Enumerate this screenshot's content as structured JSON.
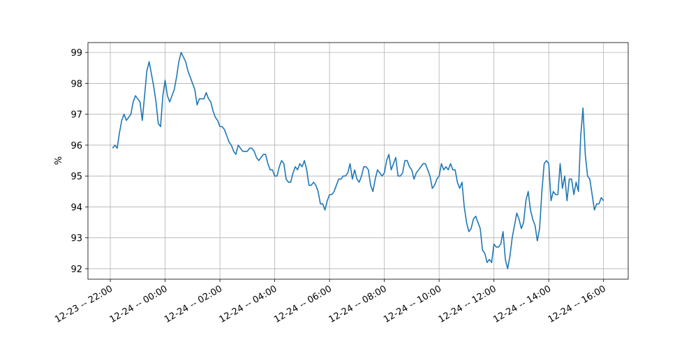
{
  "chart_data": {
    "type": "line",
    "y_label": "%",
    "grid": true,
    "xlim": [
      "12-23 -- 21:11",
      "12-24 -- 16:54"
    ],
    "xticks": [
      "12-23 -- 22:00",
      "12-24 -- 00:00",
      "12-24 -- 02:00",
      "12-24 -- 04:00",
      "12-24 -- 06:00",
      "12-24 -- 08:00",
      "12-24 -- 10:00",
      "12-24 -- 12:00",
      "12-24 -- 14:00",
      "12-24 -- 16:00"
    ],
    "ylim": [
      91.66,
      99.32
    ],
    "yticks": [
      92,
      93,
      94,
      95,
      96,
      97,
      98,
      99
    ],
    "x": [
      "12-23 -- 22:05",
      "12-23 -- 22:10",
      "12-23 -- 22:15",
      "12-23 -- 22:20",
      "12-23 -- 22:25",
      "12-23 -- 22:30",
      "12-23 -- 22:35",
      "12-23 -- 22:40",
      "12-23 -- 22:45",
      "12-23 -- 22:50",
      "12-23 -- 22:55",
      "12-23 -- 23:00",
      "12-23 -- 23:05",
      "12-23 -- 23:10",
      "12-23 -- 23:15",
      "12-23 -- 23:20",
      "12-23 -- 23:25",
      "12-23 -- 23:30",
      "12-23 -- 23:35",
      "12-23 -- 23:40",
      "12-23 -- 23:45",
      "12-23 -- 23:50",
      "12-23 -- 23:55",
      "12-24 -- 00:00",
      "12-24 -- 00:05",
      "12-24 -- 00:10",
      "12-24 -- 00:15",
      "12-24 -- 00:20",
      "12-24 -- 00:25",
      "12-24 -- 00:30",
      "12-24 -- 00:35",
      "12-24 -- 00:40",
      "12-24 -- 00:45",
      "12-24 -- 00:50",
      "12-24 -- 00:55",
      "12-24 -- 01:00",
      "12-24 -- 01:05",
      "12-24 -- 01:10",
      "12-24 -- 01:15",
      "12-24 -- 01:20",
      "12-24 -- 01:25",
      "12-24 -- 01:30",
      "12-24 -- 01:35",
      "12-24 -- 01:40",
      "12-24 -- 01:45",
      "12-24 -- 01:50",
      "12-24 -- 01:55",
      "12-24 -- 02:00",
      "12-24 -- 02:05",
      "12-24 -- 02:10",
      "12-24 -- 02:15",
      "12-24 -- 02:20",
      "12-24 -- 02:25",
      "12-24 -- 02:30",
      "12-24 -- 02:35",
      "12-24 -- 02:40",
      "12-24 -- 02:45",
      "12-24 -- 02:50",
      "12-24 -- 02:55",
      "12-24 -- 03:00",
      "12-24 -- 03:05",
      "12-24 -- 03:10",
      "12-24 -- 03:15",
      "12-24 -- 03:20",
      "12-24 -- 03:25",
      "12-24 -- 03:30",
      "12-24 -- 03:35",
      "12-24 -- 03:40",
      "12-24 -- 03:45",
      "12-24 -- 03:50",
      "12-24 -- 03:55",
      "12-24 -- 04:00",
      "12-24 -- 04:05",
      "12-24 -- 04:10",
      "12-24 -- 04:15",
      "12-24 -- 04:20",
      "12-24 -- 04:25",
      "12-24 -- 04:30",
      "12-24 -- 04:35",
      "12-24 -- 04:40",
      "12-24 -- 04:45",
      "12-24 -- 04:50",
      "12-24 -- 04:55",
      "12-24 -- 05:00",
      "12-24 -- 05:05",
      "12-24 -- 05:10",
      "12-24 -- 05:15",
      "12-24 -- 05:20",
      "12-24 -- 05:25",
      "12-24 -- 05:30",
      "12-24 -- 05:35",
      "12-24 -- 05:40",
      "12-24 -- 05:45",
      "12-24 -- 05:50",
      "12-24 -- 05:55",
      "12-24 -- 06:00",
      "12-24 -- 06:05",
      "12-24 -- 06:10",
      "12-24 -- 06:15",
      "12-24 -- 06:20",
      "12-24 -- 06:25",
      "12-24 -- 06:30",
      "12-24 -- 06:35",
      "12-24 -- 06:40",
      "12-24 -- 06:45",
      "12-24 -- 06:50",
      "12-24 -- 06:55",
      "12-24 -- 07:00",
      "12-24 -- 07:05",
      "12-24 -- 07:10",
      "12-24 -- 07:15",
      "12-24 -- 07:20",
      "12-24 -- 07:25",
      "12-24 -- 07:30",
      "12-24 -- 07:35",
      "12-24 -- 07:40",
      "12-24 -- 07:45",
      "12-24 -- 07:50",
      "12-24 -- 07:55",
      "12-24 -- 08:00",
      "12-24 -- 08:05",
      "12-24 -- 08:10",
      "12-24 -- 08:15",
      "12-24 -- 08:20",
      "12-24 -- 08:25",
      "12-24 -- 08:30",
      "12-24 -- 08:35",
      "12-24 -- 08:40",
      "12-24 -- 08:45",
      "12-24 -- 08:50",
      "12-24 -- 08:55",
      "12-24 -- 09:00",
      "12-24 -- 09:05",
      "12-24 -- 09:10",
      "12-24 -- 09:15",
      "12-24 -- 09:20",
      "12-24 -- 09:25",
      "12-24 -- 09:30",
      "12-24 -- 09:35",
      "12-24 -- 09:40",
      "12-24 -- 09:45",
      "12-24 -- 09:50",
      "12-24 -- 09:55",
      "12-24 -- 10:00",
      "12-24 -- 10:05",
      "12-24 -- 10:10",
      "12-24 -- 10:15",
      "12-24 -- 10:20",
      "12-24 -- 10:25",
      "12-24 -- 10:30",
      "12-24 -- 10:35",
      "12-24 -- 10:40",
      "12-24 -- 10:45",
      "12-24 -- 10:50",
      "12-24 -- 10:55",
      "12-24 -- 11:00",
      "12-24 -- 11:05",
      "12-24 -- 11:10",
      "12-24 -- 11:15",
      "12-24 -- 11:20",
      "12-24 -- 11:25",
      "12-24 -- 11:30",
      "12-24 -- 11:35",
      "12-24 -- 11:40",
      "12-24 -- 11:45",
      "12-24 -- 11:50",
      "12-24 -- 11:55",
      "12-24 -- 12:00",
      "12-24 -- 12:05",
      "12-24 -- 12:10",
      "12-24 -- 12:15",
      "12-24 -- 12:20",
      "12-24 -- 12:25",
      "12-24 -- 12:30",
      "12-24 -- 12:35",
      "12-24 -- 12:40",
      "12-24 -- 12:45",
      "12-24 -- 12:50",
      "12-24 -- 12:55",
      "12-24 -- 13:00",
      "12-24 -- 13:05",
      "12-24 -- 13:10",
      "12-24 -- 13:15",
      "12-24 -- 13:20",
      "12-24 -- 13:25",
      "12-24 -- 13:30",
      "12-24 -- 13:35",
      "12-24 -- 13:40",
      "12-24 -- 13:45",
      "12-24 -- 13:50",
      "12-24 -- 13:55",
      "12-24 -- 14:00",
      "12-24 -- 14:05",
      "12-24 -- 14:10",
      "12-24 -- 14:15",
      "12-24 -- 14:20",
      "12-24 -- 14:25",
      "12-24 -- 14:30",
      "12-24 -- 14:35",
      "12-24 -- 14:40",
      "12-24 -- 14:45",
      "12-24 -- 14:50",
      "12-24 -- 14:55",
      "12-24 -- 15:00",
      "12-24 -- 15:05",
      "12-24 -- 15:10",
      "12-24 -- 15:15",
      "12-24 -- 15:20",
      "12-24 -- 15:25",
      "12-24 -- 15:30",
      "12-24 -- 15:35",
      "12-24 -- 15:40",
      "12-24 -- 15:45",
      "12-24 -- 15:50",
      "12-24 -- 15:55",
      "12-24 -- 16:00"
    ],
    "series": [
      {
        "color": "#1f77b4",
        "values": [
          95.9,
          96.0,
          95.9,
          96.4,
          96.8,
          97.0,
          96.8,
          96.9,
          97.0,
          97.4,
          97.6,
          97.5,
          97.4,
          96.8,
          97.6,
          98.4,
          98.7,
          98.3,
          97.9,
          97.4,
          96.7,
          96.6,
          97.6,
          98.1,
          97.6,
          97.4,
          97.6,
          97.8,
          98.2,
          98.7,
          99.0,
          98.85,
          98.7,
          98.4,
          98.2,
          98.0,
          97.8,
          97.3,
          97.5,
          97.5,
          97.5,
          97.7,
          97.5,
          97.4,
          97.1,
          96.9,
          96.8,
          96.6,
          96.6,
          96.5,
          96.3,
          96.1,
          96.0,
          95.8,
          95.7,
          96.0,
          95.9,
          95.8,
          95.8,
          95.8,
          95.9,
          95.9,
          95.8,
          95.6,
          95.5,
          95.6,
          95.7,
          95.7,
          95.4,
          95.2,
          95.2,
          95.0,
          95.0,
          95.3,
          95.5,
          95.4,
          94.9,
          94.8,
          94.8,
          95.1,
          95.3,
          95.2,
          95.4,
          95.3,
          95.5,
          95.2,
          94.7,
          94.7,
          94.8,
          94.7,
          94.5,
          94.1,
          94.1,
          93.9,
          94.2,
          94.4,
          94.4,
          94.5,
          94.7,
          94.9,
          94.9,
          95.0,
          95.0,
          95.1,
          95.4,
          94.9,
          95.2,
          94.9,
          94.8,
          95.0,
          95.3,
          95.3,
          95.2,
          94.7,
          94.5,
          94.9,
          95.2,
          95.1,
          95.0,
          95.1,
          95.5,
          95.7,
          95.2,
          95.4,
          95.6,
          95.0,
          95.0,
          95.1,
          95.5,
          95.5,
          95.3,
          95.2,
          94.9,
          95.1,
          95.2,
          95.3,
          95.4,
          95.4,
          95.2,
          95.0,
          94.6,
          94.7,
          94.9,
          95.0,
          95.4,
          95.2,
          95.3,
          95.2,
          95.4,
          95.2,
          95.2,
          94.8,
          94.6,
          94.8,
          94.0,
          93.5,
          93.2,
          93.3,
          93.6,
          93.7,
          93.5,
          93.3,
          92.6,
          92.5,
          92.2,
          92.3,
          92.2,
          92.8,
          92.7,
          92.7,
          92.8,
          93.2,
          92.3,
          92.0,
          92.4,
          93.0,
          93.4,
          93.8,
          93.6,
          93.3,
          93.5,
          94.2,
          94.5,
          93.9,
          93.6,
          93.4,
          92.9,
          93.3,
          94.5,
          95.4,
          95.5,
          95.4,
          94.2,
          94.5,
          94.4,
          94.4,
          95.4,
          94.6,
          95.0,
          94.2,
          94.9,
          94.9,
          94.4,
          94.8,
          94.5,
          96.3,
          97.2,
          95.7,
          95.0,
          94.9,
          94.4,
          93.9,
          94.1,
          94.1,
          94.3,
          94.2
        ]
      }
    ]
  }
}
